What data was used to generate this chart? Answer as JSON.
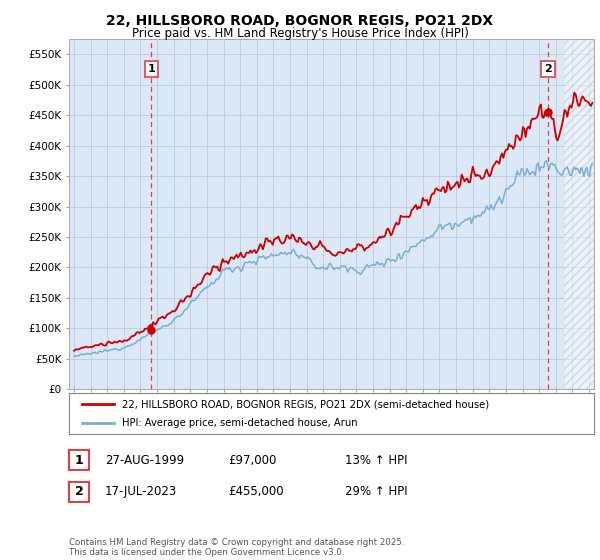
{
  "title_line1": "22, HILLSBORO ROAD, BOGNOR REGIS, PO21 2DX",
  "title_line2": "Price paid vs. HM Land Registry's House Price Index (HPI)",
  "background_color": "#ffffff",
  "plot_bg_color": "#dce8f5",
  "grid_color": "#b8cce4",
  "sale1_date_label": "27-AUG-1999",
  "sale1_price_label": "£97,000",
  "sale1_hpi_label": "13% ↑ HPI",
  "sale2_date_label": "17-JUL-2023",
  "sale2_price_label": "£455,000",
  "sale2_hpi_label": "29% ↑ HPI",
  "legend_line1": "22, HILLSBORO ROAD, BOGNOR REGIS, PO21 2DX (semi-detached house)",
  "legend_line2": "HPI: Average price, semi-detached house, Arun",
  "footer": "Contains HM Land Registry data © Crown copyright and database right 2025.\nThis data is licensed under the Open Government Licence v3.0.",
  "red_color": "#cc0000",
  "blue_color": "#7aaed6",
  "dashed_red": "#dd4444",
  "sale1_x": 1999.65,
  "sale2_x": 2023.54,
  "ylim_min": 0,
  "ylim_max": 575000,
  "xlim_min": 1994.7,
  "xlim_max": 2026.3,
  "hatch_start_x": 2024.5
}
